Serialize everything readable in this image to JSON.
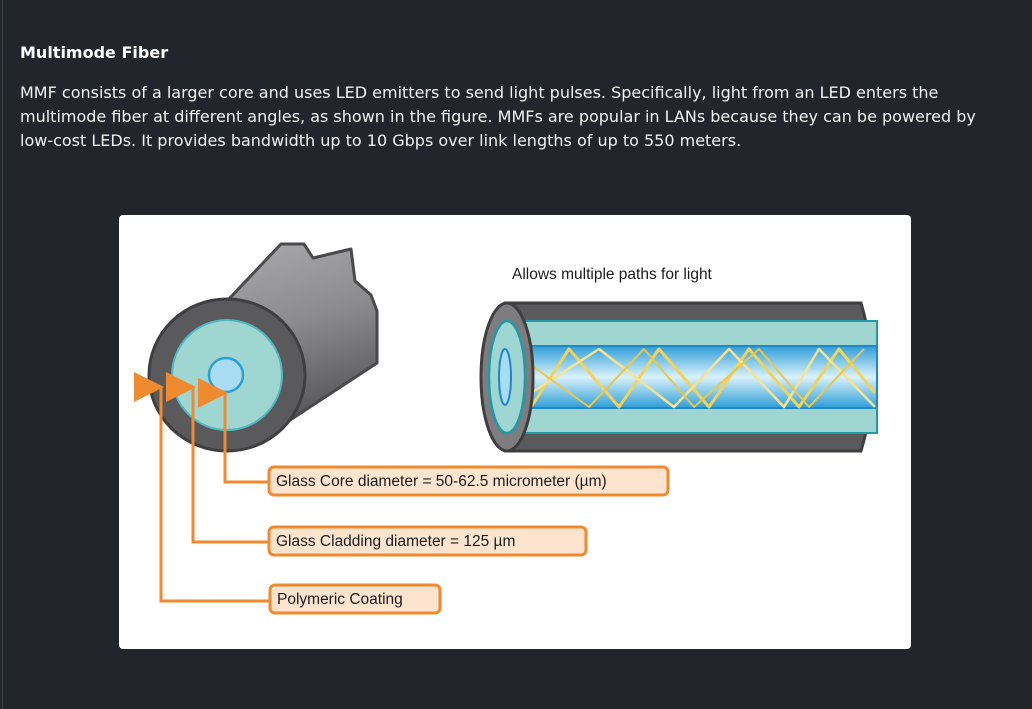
{
  "section": {
    "title": "Multimode Fiber",
    "paragraph": "MMF consists of a larger core and uses LED emitters to send light pulses. Specifically, light from an LED enters the multimode fiber at different angles, as shown in the figure. MMFs are popular in LANs because they can be powered by low-cost LEDs. It provides bandwidth up to 10 Gbps over link lengths of up to 550 meters."
  },
  "figure": {
    "caption_paths": "Allows multiple paths for light",
    "labels": {
      "core": "Glass Core diameter = 50-62.5 micrometer (µm)",
      "cladding": "Glass Cladding diameter = 125 µm",
      "coating": "Polymeric Coating"
    }
  },
  "colors": {
    "background": "#22252b",
    "orange": "#f08a2e",
    "label_fill": "#fde4cf",
    "cladding": "#9fd6d2",
    "core_light": "#b9e3f5",
    "core_dark": "#3aa7de",
    "coating": "#5a5a5c",
    "light_ray": "#f2d35a"
  }
}
